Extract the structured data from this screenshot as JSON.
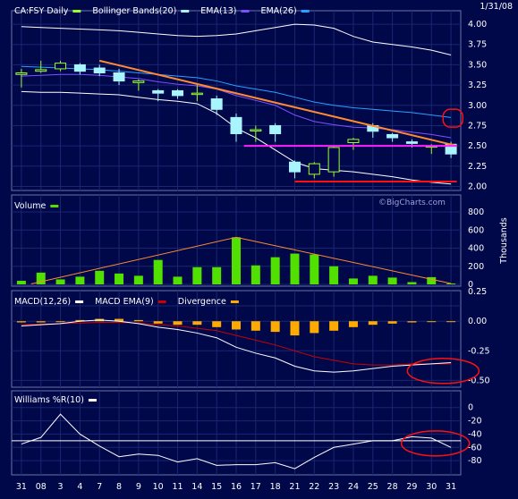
{
  "header": {
    "symbol_label": "CA:FSY Daily",
    "date": "1/31/08",
    "watermark": "©BigCharts.com"
  },
  "colors": {
    "background": "#00084a",
    "panel_border": "#6b73a8",
    "grid": "#1a2670",
    "candle_up": "#9aff30",
    "candle_down": "#a8f4ff",
    "bollinger": "#ffffff",
    "ema13": "#a8f4ff",
    "ema26": "#8050ff",
    "ema_blue": "#2aa0ff",
    "volume": "#52e000",
    "macd": "#ffffff",
    "macd_ema": "#cc0000",
    "divergence": "#ffaa00",
    "williams": "#ffffff",
    "trend_orange": "#ff8a30",
    "support_magenta": "#ff20ff",
    "support_red": "#ff1010",
    "annotation_circle": "#ff1010"
  },
  "chart_data": [
    {
      "type": "candlestick",
      "legend": [
        {
          "label": "CA:FSY Daily",
          "color": "#9aff30"
        },
        {
          "label": "Bollinger Bands(20)",
          "color": "#a8f4ff"
        },
        {
          "label": "EMA(13)",
          "color": "#8050ff"
        },
        {
          "label": "EMA(26)",
          "color": "#2aa0ff"
        }
      ],
      "ylim": [
        1.95,
        4.1
      ],
      "yticks": [
        "4.00",
        "3.75",
        "3.50",
        "3.25",
        "3.00",
        "2.75",
        "2.50",
        "2.25",
        "2.00"
      ],
      "yticks_values": [
        4.0,
        3.75,
        3.5,
        3.25,
        3.0,
        2.75,
        2.5,
        2.25,
        2.0
      ],
      "x_labels": [
        "31",
        "08",
        "3",
        "4",
        "7",
        "8",
        "9",
        "10",
        "11",
        "14",
        "15",
        "16",
        "17",
        "18",
        "21",
        "22",
        "23",
        "24",
        "25",
        "28",
        "29",
        "30",
        "31"
      ],
      "candles": [
        {
          "o": 3.38,
          "h": 3.45,
          "l": 3.22,
          "c": 3.4
        },
        {
          "o": 3.42,
          "h": 3.55,
          "l": 3.4,
          "c": 3.44
        },
        {
          "o": 3.45,
          "h": 3.55,
          "l": 3.42,
          "c": 3.52
        },
        {
          "o": 3.5,
          "h": 3.52,
          "l": 3.38,
          "c": 3.42
        },
        {
          "o": 3.46,
          "h": 3.5,
          "l": 3.36,
          "c": 3.4
        },
        {
          "o": 3.4,
          "h": 3.45,
          "l": 3.25,
          "c": 3.3
        },
        {
          "o": 3.28,
          "h": 3.32,
          "l": 3.18,
          "c": 3.3
        },
        {
          "o": 3.18,
          "h": 3.2,
          "l": 3.05,
          "c": 3.15
        },
        {
          "o": 3.18,
          "h": 3.2,
          "l": 3.08,
          "c": 3.12
        },
        {
          "o": 3.14,
          "h": 3.25,
          "l": 3.05,
          "c": 3.15
        },
        {
          "o": 3.08,
          "h": 3.12,
          "l": 2.88,
          "c": 2.95
        },
        {
          "o": 2.85,
          "h": 2.9,
          "l": 2.55,
          "c": 2.65
        },
        {
          "o": 2.7,
          "h": 2.75,
          "l": 2.55,
          "c": 2.7
        },
        {
          "o": 2.75,
          "h": 2.78,
          "l": 2.55,
          "c": 2.65
        },
        {
          "o": 2.3,
          "h": 2.32,
          "l": 2.1,
          "c": 2.18
        },
        {
          "o": 2.15,
          "h": 2.3,
          "l": 2.1,
          "c": 2.28
        },
        {
          "o": 2.18,
          "h": 2.5,
          "l": 2.12,
          "c": 2.48
        },
        {
          "o": 2.54,
          "h": 2.6,
          "l": 2.45,
          "c": 2.58
        },
        {
          "o": 2.75,
          "h": 2.78,
          "l": 2.6,
          "c": 2.68
        },
        {
          "o": 2.64,
          "h": 2.66,
          "l": 2.55,
          "c": 2.6
        },
        {
          "o": 2.55,
          "h": 2.58,
          "l": 2.48,
          "c": 2.53
        },
        {
          "o": 2.5,
          "h": 2.52,
          "l": 2.4,
          "c": 2.5
        },
        {
          "o": 2.52,
          "h": 2.55,
          "l": 2.35,
          "c": 2.4
        }
      ],
      "bollinger_upper": [
        3.97,
        3.96,
        3.95,
        3.94,
        3.93,
        3.92,
        3.9,
        3.88,
        3.86,
        3.85,
        3.86,
        3.88,
        3.92,
        3.96,
        4.0,
        3.99,
        3.95,
        3.85,
        3.78,
        3.75,
        3.72,
        3.68,
        3.62
      ],
      "bollinger_lower": [
        3.17,
        3.16,
        3.16,
        3.15,
        3.14,
        3.13,
        3.1,
        3.07,
        3.05,
        3.02,
        2.9,
        2.72,
        2.6,
        2.45,
        2.3,
        2.22,
        2.2,
        2.18,
        2.15,
        2.12,
        2.08,
        2.05,
        2.03
      ],
      "ema13": [
        3.36,
        3.37,
        3.38,
        3.38,
        3.37,
        3.35,
        3.33,
        3.29,
        3.26,
        3.24,
        3.2,
        3.12,
        3.06,
        3.0,
        2.88,
        2.8,
        2.76,
        2.73,
        2.72,
        2.7,
        2.67,
        2.64,
        2.6
      ],
      "ema26": [
        3.48,
        3.47,
        3.46,
        3.45,
        3.44,
        3.42,
        3.4,
        3.38,
        3.36,
        3.34,
        3.3,
        3.24,
        3.2,
        3.16,
        3.1,
        3.04,
        3.0,
        2.97,
        2.95,
        2.93,
        2.91,
        2.88,
        2.85
      ],
      "trendlines": [
        {
          "from": [
            4.0,
            3.55
          ],
          "to": [
            22.3,
            2.5
          ],
          "color": "#ff8a30"
        },
        {
          "from": [
            11.4,
            2.5
          ],
          "to": [
            22.3,
            2.5
          ],
          "color": "#ff20ff"
        },
        {
          "from": [
            14.0,
            2.06
          ],
          "to": [
            22.3,
            2.06
          ],
          "color": "#ff1010"
        }
      ],
      "annotation": {
        "x": 22.1,
        "y": 2.83,
        "shape": "rounded-box"
      }
    },
    {
      "type": "bar",
      "legend": [
        {
          "label": "Volume",
          "color": "#52e000"
        }
      ],
      "ylabel": "Thousands",
      "ylim": [
        0,
        800
      ],
      "yticks": [
        "800",
        "600",
        "400",
        "200",
        "0"
      ],
      "yticks_values": [
        800,
        600,
        400,
        200,
        0
      ],
      "values": [
        40,
        130,
        55,
        85,
        150,
        120,
        95,
        270,
        85,
        190,
        190,
        520,
        210,
        300,
        340,
        330,
        200,
        65,
        95,
        75,
        25,
        80,
        10
      ],
      "trendlines": [
        {
          "from": [
            0.5,
            5
          ],
          "to": [
            11,
            520
          ],
          "color": "#ff8a30"
        },
        {
          "from": [
            11,
            520
          ],
          "to": [
            22,
            10
          ],
          "color": "#ff8a30"
        }
      ]
    },
    {
      "type": "bar-line",
      "legend": [
        {
          "label": "MACD(12,26)",
          "color": "#ffffff"
        },
        {
          "label": "MACD EMA(9)",
          "color": "#cc0000"
        },
        {
          "label": "Divergence",
          "color": "#ffaa00"
        }
      ],
      "ylim": [
        -0.55,
        0.13
      ],
      "yticks": [
        "0.25",
        "0.00",
        "-0.25",
        "-0.50"
      ],
      "yticks_values": [
        0.25,
        0.0,
        -0.25,
        -0.5
      ],
      "divergence": [
        -0.01,
        -0.01,
        0.0,
        0.01,
        0.02,
        0.02,
        0.01,
        -0.02,
        -0.03,
        -0.03,
        -0.05,
        -0.07,
        -0.08,
        -0.09,
        -0.12,
        -0.1,
        -0.08,
        -0.05,
        -0.03,
        -0.02,
        -0.01,
        0.0,
        0.0
      ],
      "macd": [
        -0.04,
        -0.03,
        -0.02,
        0.0,
        0.01,
        0.0,
        -0.02,
        -0.05,
        -0.07,
        -0.1,
        -0.14,
        -0.22,
        -0.27,
        -0.31,
        -0.38,
        -0.42,
        -0.43,
        -0.42,
        -0.4,
        -0.38,
        -0.37,
        -0.36,
        -0.35
      ],
      "macd_ema": [
        -0.03,
        -0.025,
        -0.02,
        -0.015,
        -0.01,
        -0.01,
        -0.015,
        -0.03,
        -0.04,
        -0.06,
        -0.08,
        -0.12,
        -0.16,
        -0.2,
        -0.25,
        -0.3,
        -0.33,
        -0.36,
        -0.37,
        -0.37,
        -0.36,
        -0.36,
        -0.36
      ],
      "annotation": {
        "x": 21.6,
        "y": -0.42,
        "shape": "ellipse"
      }
    },
    {
      "type": "line",
      "legend": [
        {
          "label": "Williams %R(10)",
          "color": "#ffffff"
        }
      ],
      "ylim": [
        -100,
        5
      ],
      "yticks": [
        "0",
        "-20",
        "-40",
        "-60",
        "-80"
      ],
      "yticks_values": [
        0,
        -20,
        -40,
        -60,
        -80
      ],
      "reference": -50,
      "values": [
        -55,
        -45,
        -10,
        -40,
        -58,
        -74,
        -70,
        -72,
        -82,
        -77,
        -87,
        -86,
        -86,
        -83,
        -92,
        -75,
        -60,
        -55,
        -50,
        -50,
        -44,
        -46,
        -60
      ],
      "annotation": {
        "x": 21.2,
        "y": -54,
        "shape": "ellipse"
      }
    }
  ]
}
